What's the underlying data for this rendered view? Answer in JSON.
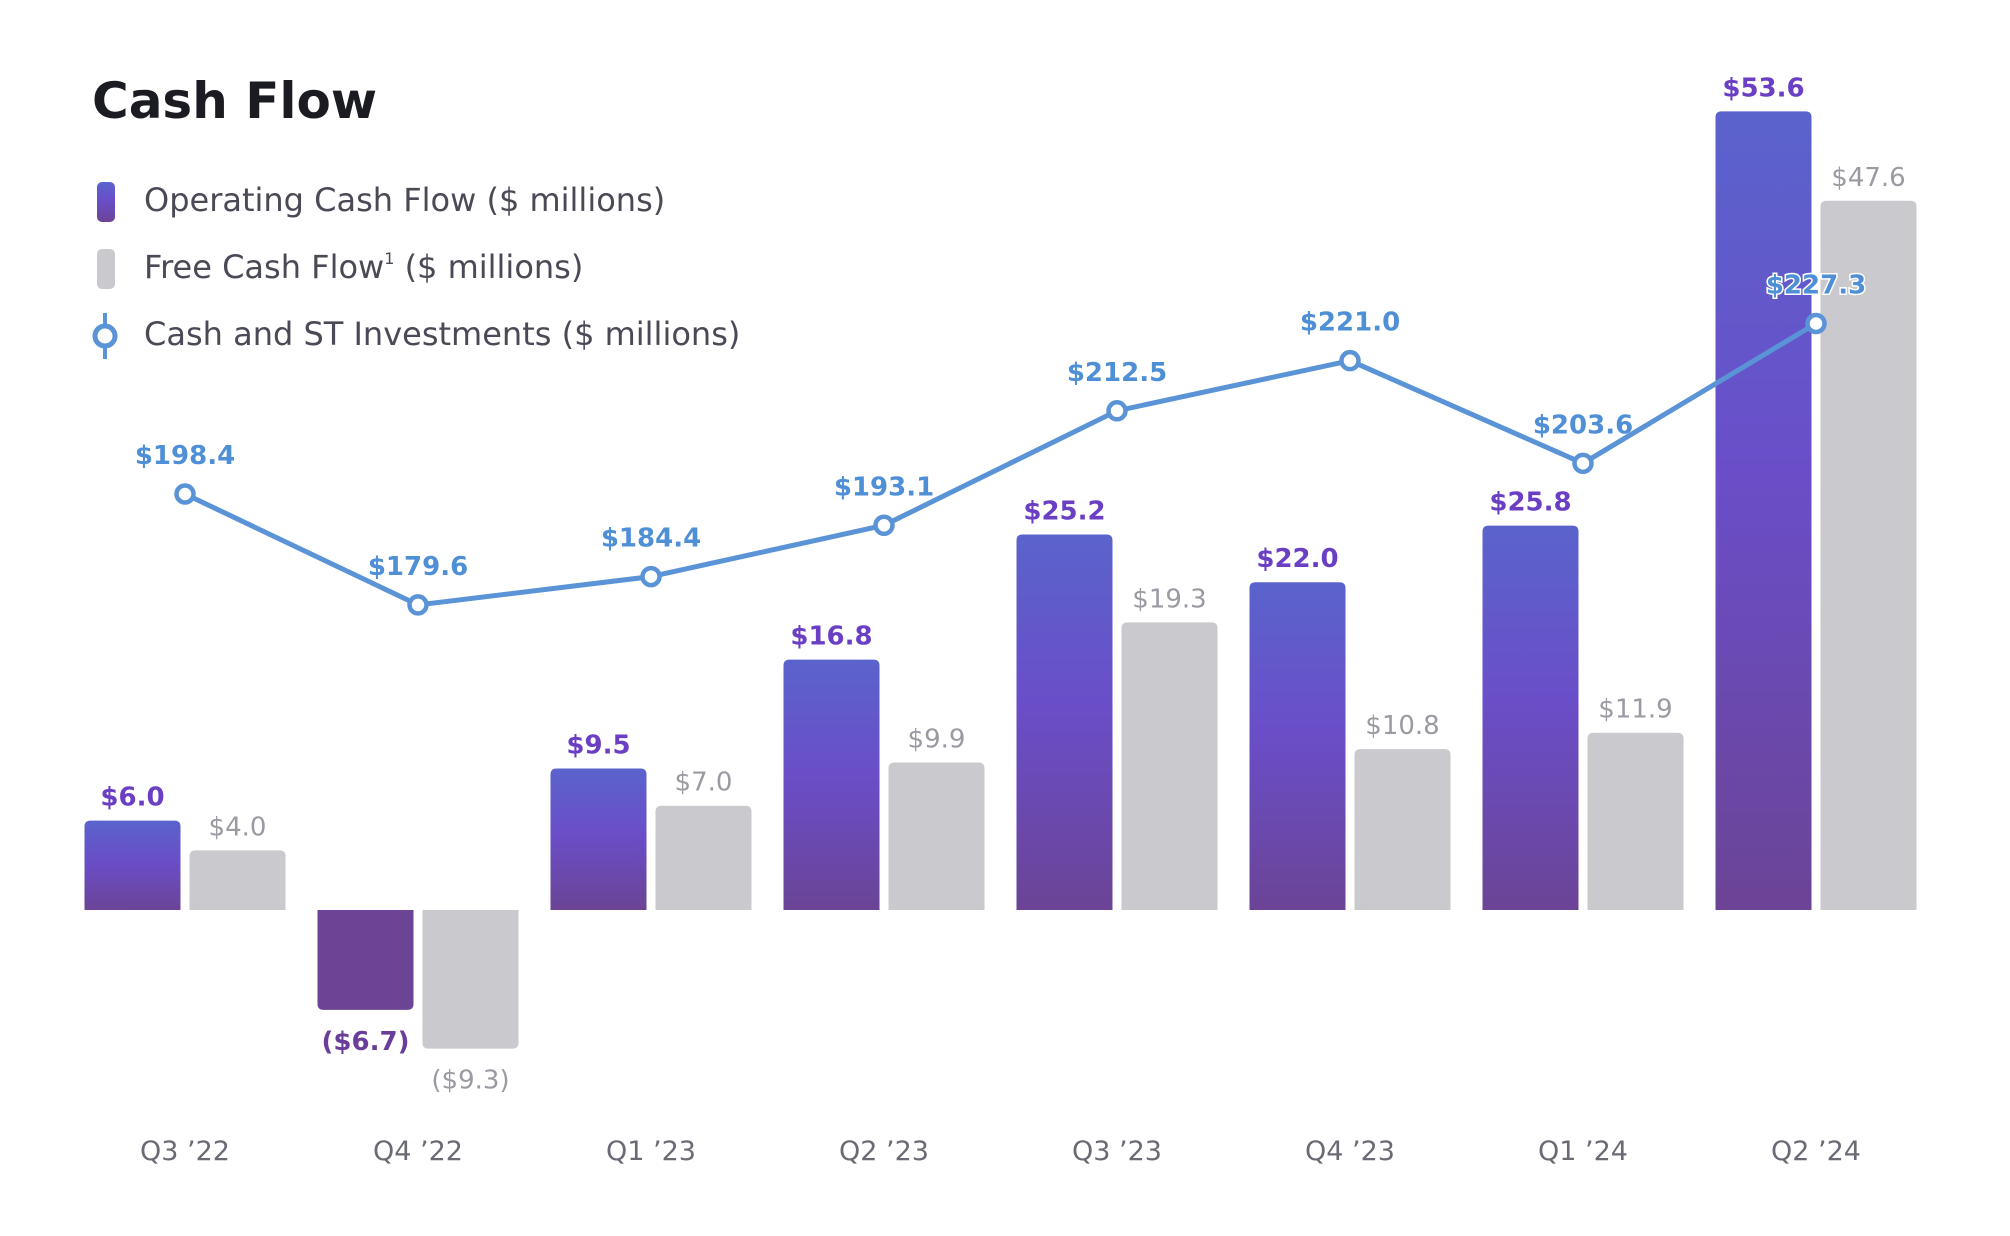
{
  "chart_data": {
    "type": "bar",
    "title": "Cash Flow",
    "categories": [
      "Q3 ’22",
      "Q4 ’22",
      "Q1 ’23",
      "Q2 ’23",
      "Q3 ’23",
      "Q4 ’23",
      "Q1 ’24",
      "Q2 ’24"
    ],
    "series": [
      {
        "name": "Operating Cash Flow ($ millions)",
        "type": "bar",
        "values": [
          6.0,
          -6.7,
          9.5,
          16.8,
          25.2,
          22.0,
          25.8,
          53.6
        ],
        "labels": [
          "$6.0",
          "($6.7)",
          "$9.5",
          "$16.8",
          "$25.2",
          "$22.0",
          "$25.8",
          "$53.6"
        ]
      },
      {
        "name": "Free Cash Flow",
        "superscript": "1",
        "name_suffix": " ($ millions)",
        "type": "bar",
        "values": [
          4.0,
          -9.3,
          7.0,
          9.9,
          19.3,
          10.8,
          11.9,
          47.6
        ],
        "labels": [
          "$4.0",
          "($9.3)",
          "$7.0",
          "$9.9",
          "$19.3",
          "$10.8",
          "$11.9",
          "$47.6"
        ]
      },
      {
        "name": "Cash and ST Investments ($ millions)",
        "type": "line",
        "values": [
          198.4,
          179.6,
          184.4,
          193.1,
          212.5,
          221.0,
          203.6,
          227.3
        ],
        "labels": [
          "$198.4",
          "$179.6",
          "$184.4",
          "$193.1",
          "$212.5",
          "$221.0",
          "$203.6",
          "$227.3"
        ]
      }
    ],
    "grid": false,
    "legend_position": "top-left",
    "colors": {
      "operating_top": "#5a63cc",
      "operating_mid": "#6a4ec9",
      "operating_bottom": "#6b4496",
      "free_cash_flow": "#c9c9ce",
      "cash_line": "#5a93d6"
    }
  }
}
